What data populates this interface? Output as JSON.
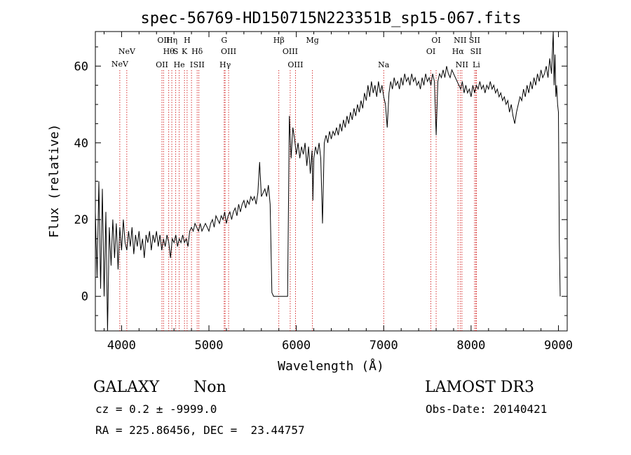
{
  "chart_data": {
    "type": "line",
    "title": "spec-56769-HD150715N223351B_sp15-067.fits",
    "xlabel": "Wavelength (Å)",
    "ylabel": "Flux (relative)",
    "xlim": [
      3700,
      9100
    ],
    "ylim": [
      -9,
      69
    ],
    "xticks": [
      4000,
      5000,
      6000,
      7000,
      8000,
      9000
    ],
    "yticks": [
      0,
      20,
      40,
      60
    ],
    "series": [
      {
        "values": [
          [
            3700,
            22
          ],
          [
            3720,
            5
          ],
          [
            3740,
            30
          ],
          [
            3760,
            2
          ],
          [
            3780,
            28
          ],
          [
            3800,
            0
          ],
          [
            3820,
            22
          ],
          [
            3840,
            -9
          ],
          [
            3860,
            18
          ],
          [
            3880,
            8
          ],
          [
            3900,
            20
          ],
          [
            3920,
            10
          ],
          [
            3940,
            19
          ],
          [
            3960,
            7
          ],
          [
            3980,
            18
          ],
          [
            4000,
            12
          ],
          [
            4020,
            20
          ],
          [
            4040,
            14
          ],
          [
            4060,
            12
          ],
          [
            4080,
            17
          ],
          [
            4100,
            13
          ],
          [
            4120,
            18
          ],
          [
            4140,
            11
          ],
          [
            4160,
            16
          ],
          [
            4180,
            13
          ],
          [
            4200,
            17
          ],
          [
            4220,
            12
          ],
          [
            4240,
            15
          ],
          [
            4260,
            10
          ],
          [
            4280,
            16
          ],
          [
            4300,
            14
          ],
          [
            4320,
            17
          ],
          [
            4340,
            12
          ],
          [
            4360,
            16
          ],
          [
            4380,
            14
          ],
          [
            4400,
            17
          ],
          [
            4420,
            13
          ],
          [
            4440,
            16
          ],
          [
            4460,
            12
          ],
          [
            4480,
            15
          ],
          [
            4500,
            13
          ],
          [
            4520,
            16
          ],
          [
            4540,
            14
          ],
          [
            4560,
            10
          ],
          [
            4580,
            15
          ],
          [
            4600,
            14
          ],
          [
            4620,
            16
          ],
          [
            4640,
            13
          ],
          [
            4660,
            15
          ],
          [
            4680,
            14
          ],
          [
            4700,
            16
          ],
          [
            4720,
            14
          ],
          [
            4740,
            15
          ],
          [
            4760,
            13
          ],
          [
            4780,
            17
          ],
          [
            4800,
            18
          ],
          [
            4820,
            17
          ],
          [
            4840,
            19
          ],
          [
            4860,
            18
          ],
          [
            4880,
            17
          ],
          [
            4900,
            19
          ],
          [
            4920,
            17
          ],
          [
            4940,
            18
          ],
          [
            4960,
            19
          ],
          [
            4980,
            18
          ],
          [
            5000,
            17
          ],
          [
            5020,
            19
          ],
          [
            5040,
            20
          ],
          [
            5060,
            18
          ],
          [
            5080,
            21
          ],
          [
            5100,
            20
          ],
          [
            5120,
            19
          ],
          [
            5140,
            21
          ],
          [
            5160,
            20
          ],
          [
            5180,
            22
          ],
          [
            5200,
            19
          ],
          [
            5220,
            21
          ],
          [
            5240,
            22
          ],
          [
            5260,
            20
          ],
          [
            5280,
            22
          ],
          [
            5300,
            23
          ],
          [
            5320,
            21
          ],
          [
            5340,
            24
          ],
          [
            5360,
            22
          ],
          [
            5380,
            24
          ],
          [
            5400,
            25
          ],
          [
            5420,
            23
          ],
          [
            5440,
            25
          ],
          [
            5460,
            24
          ],
          [
            5480,
            26
          ],
          [
            5500,
            25
          ],
          [
            5520,
            26
          ],
          [
            5540,
            24
          ],
          [
            5560,
            27
          ],
          [
            5580,
            35
          ],
          [
            5600,
            26
          ],
          [
            5620,
            27
          ],
          [
            5640,
            28
          ],
          [
            5660,
            26
          ],
          [
            5680,
            29
          ],
          [
            5700,
            24
          ],
          [
            5720,
            1
          ],
          [
            5740,
            0
          ],
          [
            5760,
            0
          ],
          [
            5780,
            0
          ],
          [
            5800,
            0
          ],
          [
            5820,
            0
          ],
          [
            5840,
            0
          ],
          [
            5860,
            0
          ],
          [
            5880,
            0
          ],
          [
            5900,
            0
          ],
          [
            5920,
            47
          ],
          [
            5940,
            36
          ],
          [
            5960,
            44
          ],
          [
            5980,
            41
          ],
          [
            6000,
            37
          ],
          [
            6020,
            40
          ],
          [
            6040,
            36
          ],
          [
            6060,
            39
          ],
          [
            6080,
            37
          ],
          [
            6100,
            40
          ],
          [
            6120,
            34
          ],
          [
            6140,
            39
          ],
          [
            6160,
            32
          ],
          [
            6180,
            38
          ],
          [
            6190,
            25
          ],
          [
            6200,
            36
          ],
          [
            6220,
            39
          ],
          [
            6240,
            37
          ],
          [
            6260,
            40
          ],
          [
            6280,
            36
          ],
          [
            6300,
            19
          ],
          [
            6320,
            40
          ],
          [
            6340,
            42
          ],
          [
            6360,
            40
          ],
          [
            6380,
            43
          ],
          [
            6400,
            41
          ],
          [
            6420,
            43
          ],
          [
            6440,
            42
          ],
          [
            6460,
            44
          ],
          [
            6480,
            42
          ],
          [
            6500,
            45
          ],
          [
            6520,
            43
          ],
          [
            6540,
            46
          ],
          [
            6560,
            44
          ],
          [
            6580,
            47
          ],
          [
            6600,
            45
          ],
          [
            6620,
            48
          ],
          [
            6640,
            46
          ],
          [
            6660,
            49
          ],
          [
            6680,
            47
          ],
          [
            6700,
            50
          ],
          [
            6720,
            48
          ],
          [
            6740,
            51
          ],
          [
            6760,
            49
          ],
          [
            6780,
            53
          ],
          [
            6800,
            51
          ],
          [
            6820,
            55
          ],
          [
            6840,
            52
          ],
          [
            6860,
            56
          ],
          [
            6880,
            53
          ],
          [
            6900,
            55
          ],
          [
            6920,
            52
          ],
          [
            6940,
            56
          ],
          [
            6960,
            53
          ],
          [
            6980,
            55
          ],
          [
            7000,
            52
          ],
          [
            7020,
            50
          ],
          [
            7040,
            44
          ],
          [
            7060,
            53
          ],
          [
            7080,
            56
          ],
          [
            7100,
            54
          ],
          [
            7120,
            57
          ],
          [
            7140,
            55
          ],
          [
            7160,
            56
          ],
          [
            7180,
            54
          ],
          [
            7200,
            57
          ],
          [
            7220,
            55
          ],
          [
            7240,
            58
          ],
          [
            7260,
            56
          ],
          [
            7280,
            57
          ],
          [
            7300,
            55
          ],
          [
            7320,
            58
          ],
          [
            7340,
            56
          ],
          [
            7360,
            57
          ],
          [
            7380,
            55
          ],
          [
            7400,
            56
          ],
          [
            7420,
            54
          ],
          [
            7440,
            57
          ],
          [
            7460,
            55
          ],
          [
            7480,
            58
          ],
          [
            7500,
            56
          ],
          [
            7520,
            57
          ],
          [
            7540,
            55
          ],
          [
            7560,
            58
          ],
          [
            7580,
            56
          ],
          [
            7600,
            42
          ],
          [
            7620,
            56
          ],
          [
            7640,
            58
          ],
          [
            7660,
            57
          ],
          [
            7680,
            59
          ],
          [
            7700,
            57
          ],
          [
            7720,
            60
          ],
          [
            7740,
            58
          ],
          [
            7760,
            57
          ],
          [
            7780,
            59
          ],
          [
            7800,
            58
          ],
          [
            7820,
            57
          ],
          [
            7840,
            56
          ],
          [
            7860,
            55
          ],
          [
            7880,
            54
          ],
          [
            7900,
            56
          ],
          [
            7920,
            53
          ],
          [
            7940,
            55
          ],
          [
            7960,
            53
          ],
          [
            7980,
            54
          ],
          [
            8000,
            52
          ],
          [
            8020,
            55
          ],
          [
            8040,
            53
          ],
          [
            8060,
            55
          ],
          [
            8080,
            54
          ],
          [
            8100,
            56
          ],
          [
            8120,
            54
          ],
          [
            8140,
            55
          ],
          [
            8160,
            53
          ],
          [
            8180,
            55
          ],
          [
            8200,
            54
          ],
          [
            8220,
            56
          ],
          [
            8240,
            54
          ],
          [
            8260,
            55
          ],
          [
            8280,
            53
          ],
          [
            8300,
            54
          ],
          [
            8320,
            52
          ],
          [
            8340,
            53
          ],
          [
            8360,
            51
          ],
          [
            8380,
            52
          ],
          [
            8400,
            50
          ],
          [
            8420,
            51
          ],
          [
            8440,
            48
          ],
          [
            8460,
            50
          ],
          [
            8480,
            47
          ],
          [
            8500,
            45
          ],
          [
            8520,
            48
          ],
          [
            8540,
            50
          ],
          [
            8560,
            52
          ],
          [
            8580,
            51
          ],
          [
            8600,
            54
          ],
          [
            8620,
            52
          ],
          [
            8640,
            55
          ],
          [
            8660,
            53
          ],
          [
            8680,
            56
          ],
          [
            8700,
            54
          ],
          [
            8720,
            57
          ],
          [
            8740,
            55
          ],
          [
            8760,
            58
          ],
          [
            8780,
            56
          ],
          [
            8800,
            59
          ],
          [
            8820,
            57
          ],
          [
            8840,
            58
          ],
          [
            8860,
            60
          ],
          [
            8880,
            57
          ],
          [
            8900,
            62
          ],
          [
            8920,
            58
          ],
          [
            8940,
            69
          ],
          [
            8950,
            55
          ],
          [
            8960,
            63
          ],
          [
            8970,
            52
          ],
          [
            8980,
            55
          ],
          [
            8990,
            50
          ],
          [
            9000,
            48
          ],
          [
            9010,
            14
          ],
          [
            9020,
            0
          ]
        ]
      }
    ],
    "lines": [
      {
        "x": 3980,
        "labels": [
          "NeV"
        ],
        "row": 2
      },
      {
        "x": 4060,
        "labels": [
          "NeV"
        ],
        "row": 1
      },
      {
        "x": 4462,
        "labels": [
          "OII"
        ],
        "row": 3
      },
      {
        "x": 4480,
        "labels": [
          "OII"
        ],
        "row": 0
      },
      {
        "x": 4540,
        "labels": [
          "Hθ"
        ],
        "row": 1
      },
      {
        "x": 4575,
        "labels": [
          "Hη"
        ],
        "row": 0
      },
      {
        "x": 4620,
        "labels": [
          "S"
        ],
        "row": 1
      },
      {
        "x": 4660,
        "labels": [
          "He"
        ],
        "row": 3
      },
      {
        "x": 4720,
        "labels": [
          "K"
        ],
        "row": 1
      },
      {
        "x": 4750,
        "labels": [
          "H"
        ],
        "row": 0
      },
      {
        "x": 4800,
        "labels": [
          "I"
        ],
        "row": 3
      },
      {
        "x": 4865,
        "labels": [
          "Hδ"
        ],
        "row": 1
      },
      {
        "x": 4885,
        "labels": [
          "SII"
        ],
        "row": 3
      },
      {
        "x": 5175,
        "labels": [
          "G"
        ],
        "row": 0
      },
      {
        "x": 5185,
        "labels": [
          "Hγ"
        ],
        "row": 3
      },
      {
        "x": 5225,
        "labels": [
          "OIII"
        ],
        "row": 1
      },
      {
        "x": 5800,
        "labels": [
          "Hβ"
        ],
        "row": 0
      },
      {
        "x": 5930,
        "labels": [
          "OIII"
        ],
        "row": 1
      },
      {
        "x": 5990,
        "labels": [
          "OIII"
        ],
        "row": 3
      },
      {
        "x": 6185,
        "labels": [
          "Mg"
        ],
        "row": 0
      },
      {
        "x": 7000,
        "labels": [
          "Na"
        ],
        "row": 3
      },
      {
        "x": 7540,
        "labels": [
          "OI"
        ],
        "row": 1
      },
      {
        "x": 7600,
        "labels": [
          "OI"
        ],
        "row": 0
      },
      {
        "x": 7850,
        "labels": [
          "Hα"
        ],
        "row": 1
      },
      {
        "x": 7875,
        "labels": [
          "NII"
        ],
        "row": 0
      },
      {
        "x": 7895,
        "labels": [
          "NII"
        ],
        "row": 3
      },
      {
        "x": 8040,
        "labels": [
          "SII"
        ],
        "row": 0
      },
      {
        "x": 8055,
        "labels": [
          "SII"
        ],
        "row": 1
      },
      {
        "x": 8060,
        "labels": [
          "Li"
        ],
        "row": 3
      }
    ]
  },
  "footer": {
    "class_label": "GALAXY",
    "subclass_label": "Non",
    "survey": "LAMOST DR3",
    "cz": "cz = 0.2 ± -9999.0",
    "obs_date": "Obs-Date: 20140421",
    "radec": "RA = 225.86456, DEC =  23.44757"
  },
  "colors": {
    "line_marker": "#cc0000",
    "spectrum": "#000000"
  }
}
